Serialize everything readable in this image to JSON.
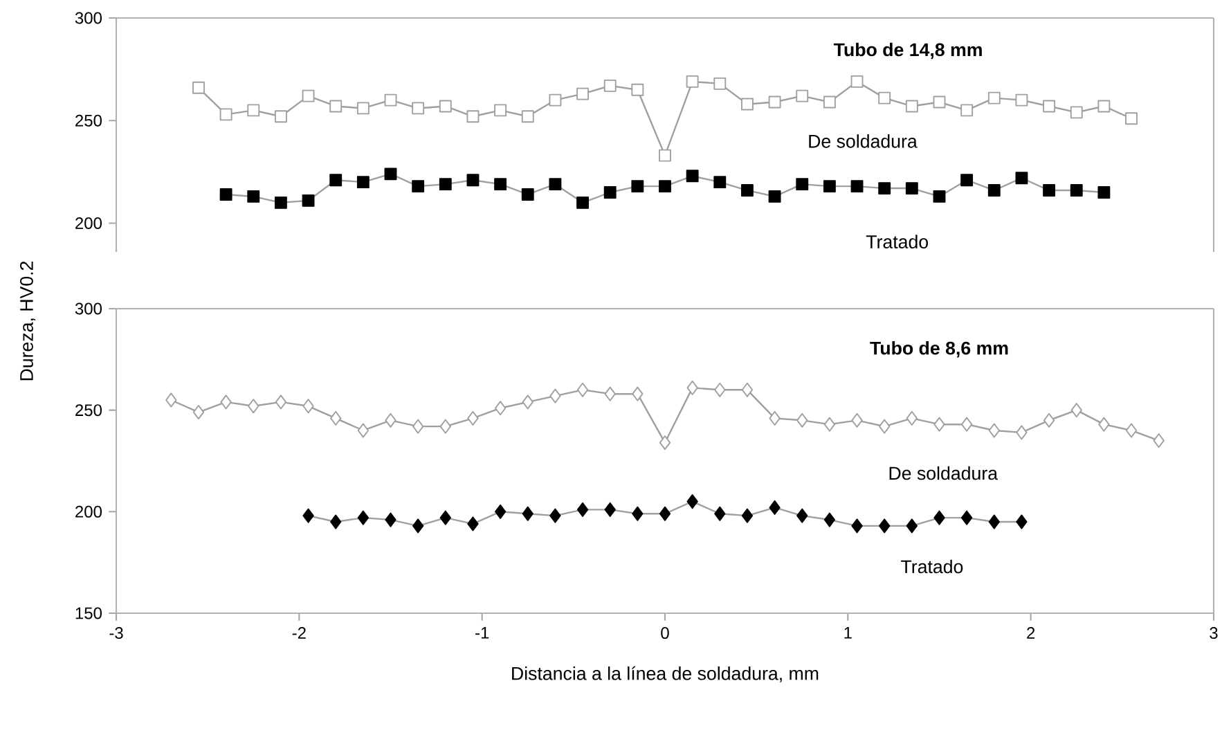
{
  "chart_data": [
    {
      "type": "line",
      "title": "**Tubo de 14,8 mm**",
      "xlim": [
        -3,
        3
      ],
      "ylim": [
        186,
        300
      ],
      "yticks": [
        200,
        250,
        300
      ],
      "tick_labels": "y",
      "grid": false,
      "line_style": "solid",
      "series": [
        {
          "name": "De soldadura",
          "color": "#ffffff",
          "marker": "square",
          "x": [
            -2.55,
            -2.4,
            -2.25,
            -2.1,
            -1.95,
            -1.8,
            -1.65,
            -1.5,
            -1.35,
            -1.2,
            -1.05,
            -0.9,
            -0.75,
            -0.6,
            -0.45,
            -0.3,
            -0.15,
            0,
            0.15,
            0.3,
            0.45,
            0.6,
            0.75,
            0.9,
            1.05,
            1.2,
            1.35,
            1.5,
            1.65,
            1.8,
            1.95,
            2.1,
            2.25,
            2.4,
            2.55
          ],
          "values": [
            266,
            253,
            255,
            252,
            262,
            257,
            256,
            260,
            256,
            257,
            252,
            255,
            252,
            260,
            263,
            267,
            265,
            233,
            269,
            268,
            258,
            259,
            262,
            259,
            269,
            261,
            257,
            259,
            255,
            261,
            260,
            257,
            254,
            257,
            251
          ]
        },
        {
          "name": "Tratado",
          "color": "#000000",
          "marker": "square",
          "x": [
            -2.4,
            -2.25,
            -2.1,
            -1.95,
            -1.8,
            -1.65,
            -1.5,
            -1.35,
            -1.2,
            -1.05,
            -0.9,
            -0.75,
            -0.6,
            -0.45,
            -0.3,
            -0.15,
            0,
            0.15,
            0.3,
            0.45,
            0.6,
            0.75,
            0.9,
            1.05,
            1.2,
            1.35,
            1.5,
            1.65,
            1.8,
            1.95,
            2.1,
            2.25,
            2.4
          ],
          "values": [
            214,
            213,
            210,
            211,
            221,
            220,
            224,
            218,
            219,
            221,
            219,
            214,
            219,
            210,
            215,
            218,
            218,
            223,
            220,
            216,
            213,
            219,
            218,
            218,
            217,
            217,
            213,
            221,
            216,
            222,
            216,
            216,
            215
          ]
        }
      ]
    },
    {
      "type": "line",
      "title": "**Tubo de 8,6 mm**",
      "xlabel": "Distancia a la línea de soldadura, mm",
      "ylabel": "Dureza, HV0.2",
      "xlim": [
        -3,
        3
      ],
      "ylim": [
        150,
        300
      ],
      "xticks": [
        -3,
        -2,
        -1,
        0,
        1,
        2,
        3
      ],
      "yticks": [
        150,
        200,
        250,
        300
      ],
      "grid": false,
      "line_style": "solid",
      "series": [
        {
          "name": "De soldadura",
          "color": "#ffffff",
          "marker": "diamond",
          "x": [
            -2.7,
            -2.55,
            -2.4,
            -2.25,
            -2.1,
            -1.95,
            -1.8,
            -1.65,
            -1.5,
            -1.35,
            -1.2,
            -1.05,
            -0.9,
            -0.75,
            -0.6,
            -0.45,
            -0.3,
            -0.15,
            0,
            0.15,
            0.3,
            0.45,
            0.6,
            0.75,
            0.9,
            1.05,
            1.2,
            1.35,
            1.5,
            1.65,
            1.8,
            1.95,
            2.1,
            2.25,
            2.4,
            2.55,
            2.7
          ],
          "values": [
            255,
            249,
            254,
            252,
            254,
            252,
            246,
            240,
            245,
            242,
            242,
            246,
            251,
            254,
            257,
            260,
            258,
            258,
            234,
            261,
            260,
            260,
            246,
            245,
            243,
            245,
            242,
            246,
            243,
            243,
            240,
            239,
            245,
            250,
            243,
            240,
            235
          ]
        },
        {
          "name": "Tratado",
          "color": "#000000",
          "marker": "diamond",
          "x": [
            -1.95,
            -1.8,
            -1.65,
            -1.5,
            -1.35,
            -1.2,
            -1.05,
            -0.9,
            -0.75,
            -0.6,
            -0.45,
            -0.3,
            -0.15,
            0,
            0.15,
            0.3,
            0.45,
            0.6,
            0.75,
            0.9,
            1.05,
            1.2,
            1.35,
            1.5,
            1.65,
            1.8,
            1.95
          ],
          "values": [
            198,
            195,
            197,
            196,
            193,
            197,
            194,
            200,
            199,
            198,
            201,
            201,
            199,
            199,
            205,
            199,
            198,
            202,
            198,
            196,
            193,
            193,
            193,
            197,
            197,
            195,
            195
          ]
        }
      ]
    }
  ]
}
